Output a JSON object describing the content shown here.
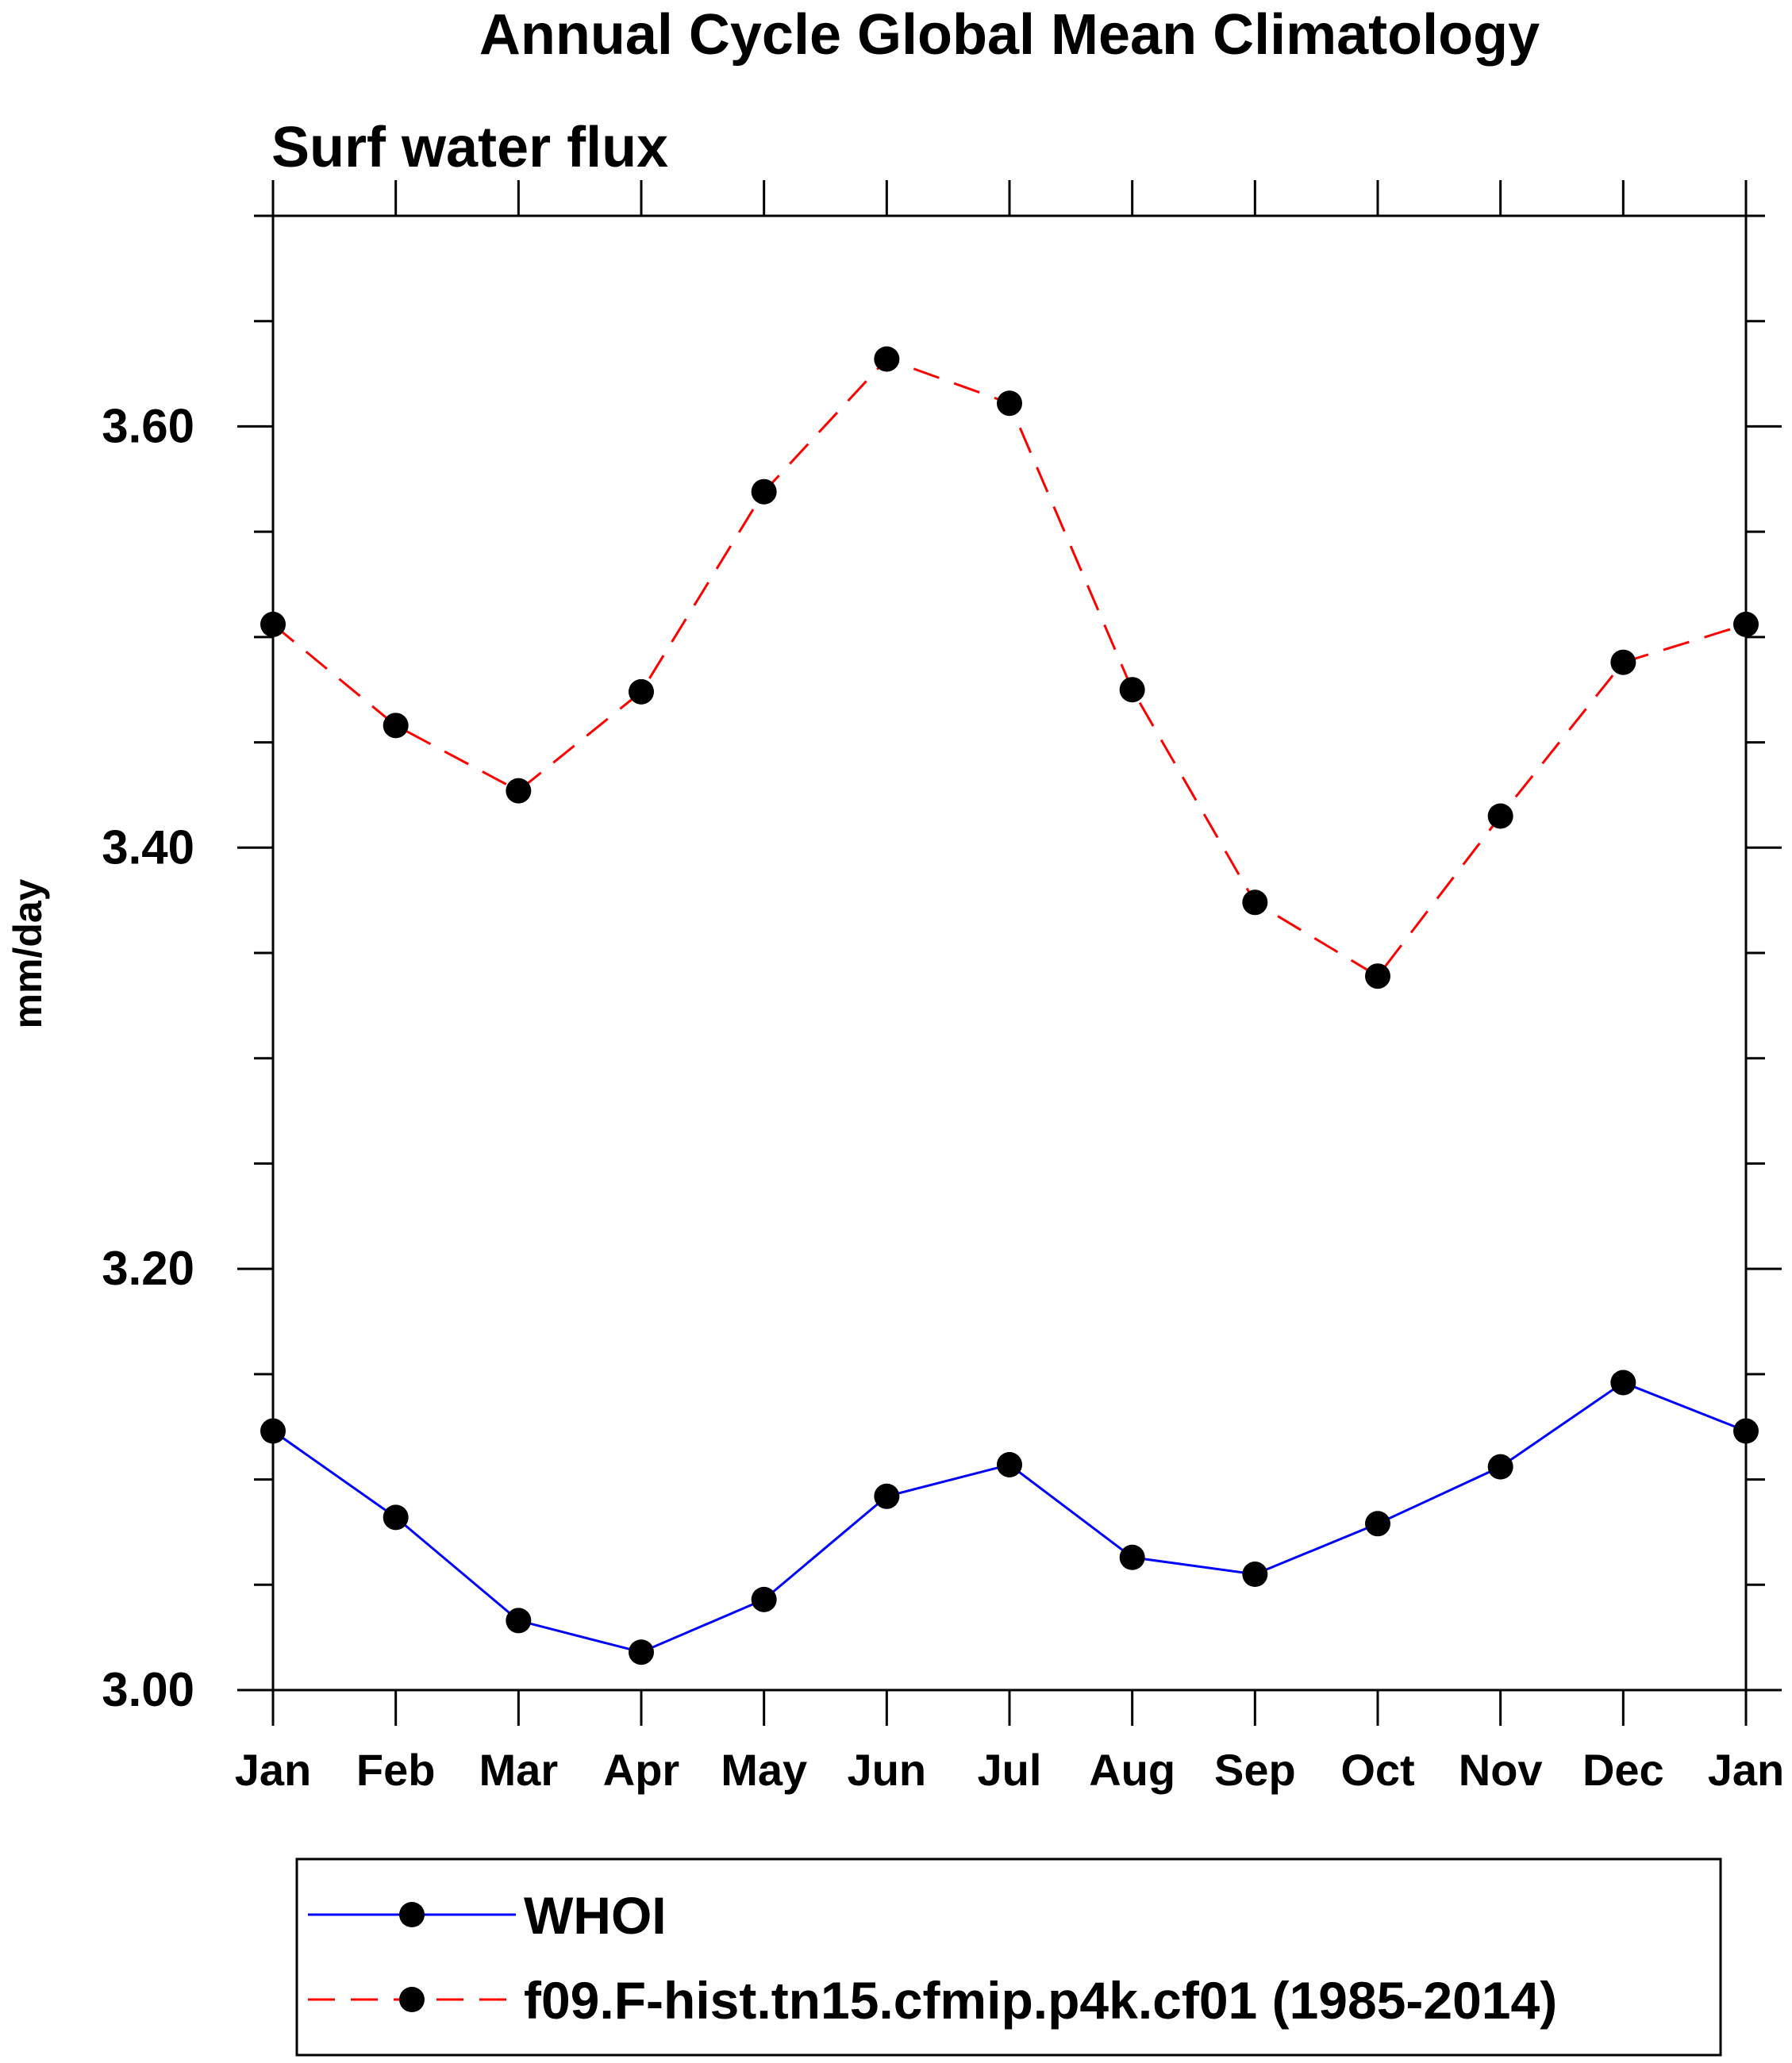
{
  "chart_data": {
    "type": "line",
    "title": "Annual Cycle Global Mean Climatology",
    "subtitle": "Surf water flux",
    "xlabel": "",
    "ylabel": "mm/day",
    "categories": [
      "Jan",
      "Feb",
      "Mar",
      "Apr",
      "May",
      "Jun",
      "Jul",
      "Aug",
      "Sep",
      "Oct",
      "Nov",
      "Dec",
      "Jan"
    ],
    "ylim": [
      3.0,
      3.7
    ],
    "yticks": [
      3.0,
      3.2,
      3.4,
      3.6
    ],
    "ytick_labels": [
      "3.00",
      "3.20",
      "3.40",
      "3.60"
    ],
    "y_minor_step": 0.05,
    "grid": false,
    "legend_position": "bottom",
    "series": [
      {
        "name": "WHOI",
        "color": "#0000ff",
        "line_style": "solid",
        "marker": "filled-circle",
        "values": [
          3.123,
          3.082,
          3.033,
          3.018,
          3.043,
          3.092,
          3.107,
          3.063,
          3.055,
          3.079,
          3.106,
          3.146,
          3.123
        ]
      },
      {
        "name": "f09.F-hist.tn15.cfmip.p4k.cf01 (1985-2014)",
        "color": "#ff0000",
        "line_style": "dashed",
        "marker": "filled-circle",
        "values": [
          3.506,
          3.458,
          3.427,
          3.474,
          3.569,
          3.632,
          3.611,
          3.475,
          3.374,
          3.339,
          3.415,
          3.488,
          3.506
        ]
      }
    ]
  }
}
